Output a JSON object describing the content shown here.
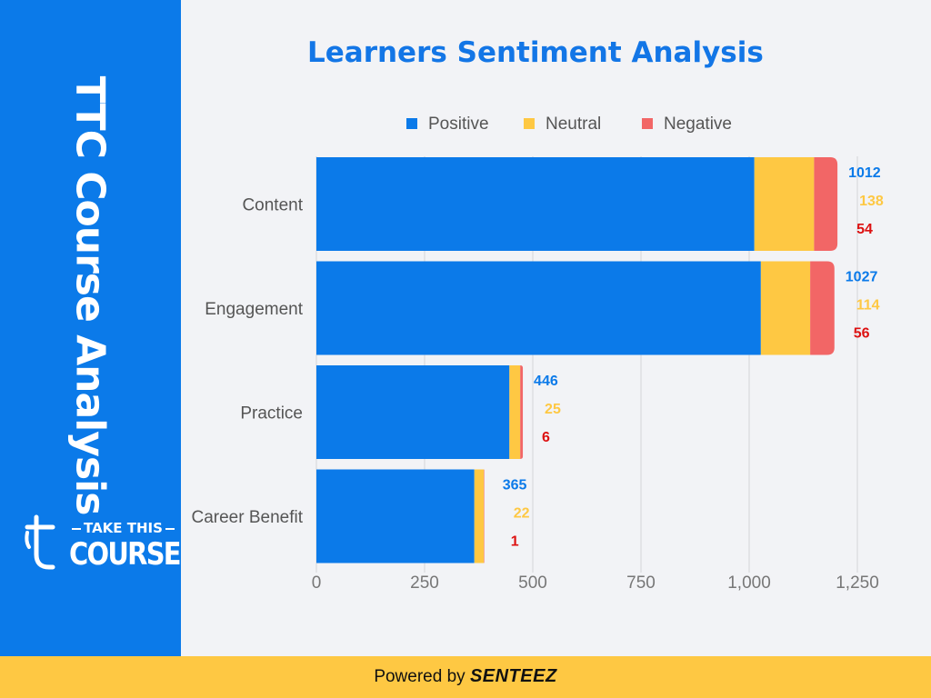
{
  "sidebar": {
    "title": "TTC Course Analysis"
  },
  "logo": {
    "line1": "TAKE THIS",
    "line2": "COURSE"
  },
  "footer": {
    "prefix": "Powered by",
    "brand": "SENTEEZ"
  },
  "colors": {
    "positive": "#0b7ae9",
    "neutral": "#fec843",
    "negative": "#f26666",
    "negative_label": "#dd1111",
    "grid": "#d4d4d8"
  },
  "chart_data": {
    "type": "bar",
    "orientation": "horizontal",
    "stacked": true,
    "title": "Learners Sentiment Analysis",
    "categories": [
      "Content",
      "Engagement",
      "Practice",
      "Career Benefit"
    ],
    "series": [
      {
        "name": "Positive",
        "values": [
          1012,
          1027,
          446,
          365
        ]
      },
      {
        "name": "Neutral",
        "values": [
          138,
          114,
          25,
          22
        ]
      },
      {
        "name": "Negative",
        "values": [
          54,
          56,
          6,
          1
        ]
      }
    ],
    "x_ticks": [
      "0",
      "250",
      "500",
      "750",
      "1,000",
      "1,250"
    ],
    "xlim": [
      0,
      1250
    ],
    "grid": true,
    "legend": "top"
  }
}
